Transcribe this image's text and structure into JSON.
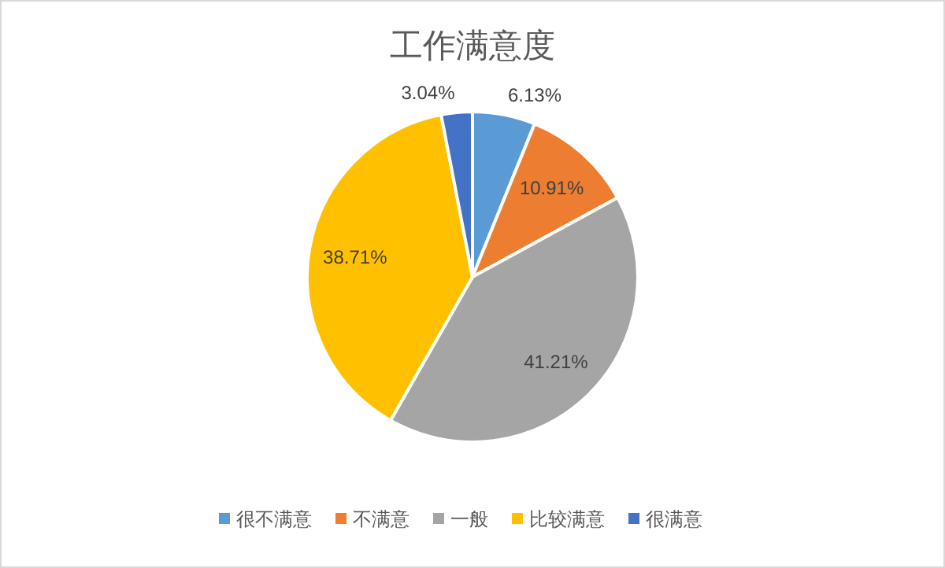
{
  "chart_data": {
    "type": "pie",
    "title": "工作满意度",
    "categories": [
      "很不满意",
      "不满意",
      "一般",
      "比较满意",
      "很满意"
    ],
    "values": [
      6.13,
      10.91,
      41.21,
      38.71,
      3.04
    ],
    "value_labels": [
      "6.13%",
      "10.91%",
      "41.21%",
      "38.71%",
      "3.04%"
    ],
    "colors": [
      "#5b9bd5",
      "#ed7d31",
      "#a5a5a5",
      "#ffc000",
      "#4472c4"
    ],
    "legend": "bottom"
  }
}
